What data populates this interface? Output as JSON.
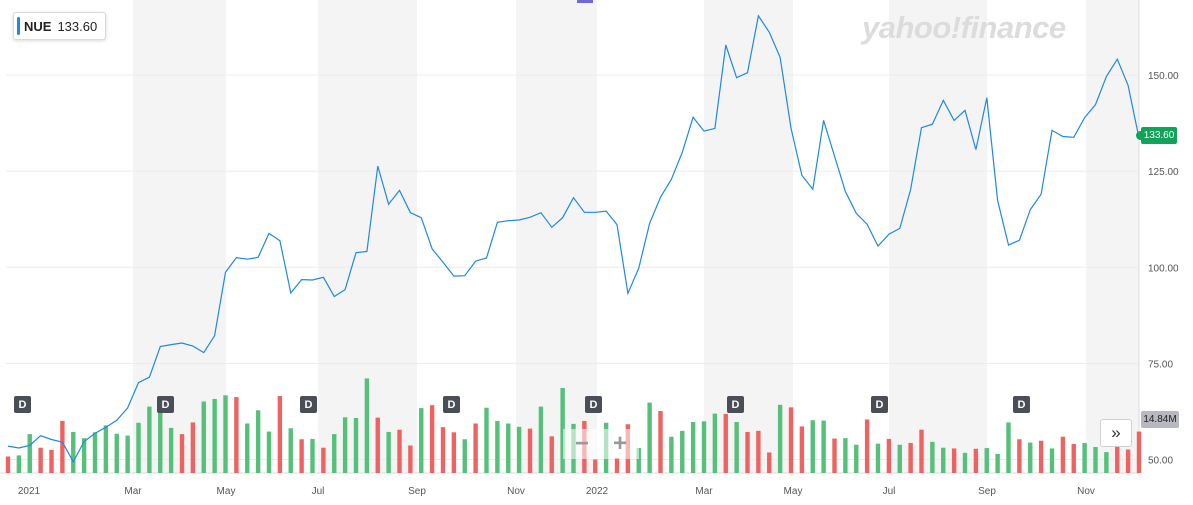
{
  "ticker": {
    "symbol": "NUE",
    "last": "133.60"
  },
  "watermark": "yahoo!finance",
  "last_price_tag": "133.60",
  "volume_tag": "14.84M",
  "controls": {
    "zoom_out": "−",
    "zoom_in": "+",
    "expand": "»"
  },
  "dividend_marker_label": "D",
  "colors": {
    "price_line": "#1e88e5",
    "vol_up": "#54c07a",
    "vol_down": "#ef6262",
    "band": "#f4f4f4",
    "tag": "#0fa45a"
  },
  "chart_data": {
    "type": "line",
    "x_tick_labels": [
      "2021",
      "Mar",
      "May",
      "Jul",
      "Sep",
      "Nov",
      "2022",
      "Mar",
      "May",
      "Jul",
      "Sep",
      "Nov"
    ],
    "y_tick_labels": [
      "150.00",
      "125.00",
      "100.00",
      "75.00",
      "50.00"
    ],
    "ylim": [
      46.5,
      169.5
    ],
    "grid": true,
    "series": [
      {
        "values": [
          53.5,
          53,
          53.7,
          56.2,
          55.2,
          54.5,
          49.4,
          54.7,
          56.8,
          58.4,
          60.2,
          63.4,
          70,
          71.4,
          79.4,
          79.9,
          80.3,
          79.5,
          77.8,
          82.2,
          98.7,
          102.5,
          102.1,
          102.6,
          108.8,
          106.9,
          93.3,
          96.8,
          96.7,
          97.4,
          92.4,
          94.2,
          103.8,
          104.1,
          126.3,
          116.4,
          120,
          114.2,
          112.9,
          104.8,
          101.3,
          97.7,
          97.8,
          101.6,
          102.4,
          111.7,
          112.1,
          112.3,
          113,
          114.2,
          110.4,
          112.9,
          118.1,
          114.3,
          114.3,
          114.6,
          111.1,
          93.2,
          99.8,
          111.4,
          118.2,
          122.9,
          129.9,
          139,
          135.4,
          136.1,
          157.8,
          149.3,
          150.6,
          165.4,
          161.1,
          154.6,
          136.2,
          123.9,
          120.3,
          138.2,
          128.9,
          119.7,
          114,
          111.2,
          105.5,
          108.6,
          110.1,
          120.2,
          136.3,
          137.2,
          143.4,
          138.2,
          140.8,
          130.6,
          144.1,
          117.4,
          105.8,
          107,
          115,
          119,
          135.6,
          134,
          133.8,
          138.9,
          142.3,
          149.6,
          154.1,
          147.3,
          133.6
        ]
      }
    ],
    "volume_bars": {
      "y_range": [
        0,
        30
      ],
      "values": [
        4.5,
        4.8,
        10.6,
        6.9,
        6.3,
        14.2,
        11.2,
        9.5,
        11.1,
        13,
        10.7,
        10.2,
        13.7,
        18.1,
        18.5,
        12.3,
        10.6,
        13.8,
        19.5,
        20.2,
        21.2,
        20.7,
        13.5,
        17.1,
        11.3,
        21,
        12.2,
        9.2,
        9.3,
        6.9,
        10.6,
        15.2,
        15,
        25.8,
        15.1,
        11.2,
        11.8,
        7.5,
        17.7,
        18.5,
        12.5,
        11.1,
        9.2,
        13.5,
        17.8,
        14.2,
        13.5,
        12.6,
        12.1,
        18.1,
        10,
        23.2,
        13.4,
        14.2,
        3.7,
        13.7,
        4.1,
        13.3,
        6.8,
        19.2,
        16.9,
        9.9,
        11.5,
        13.9,
        14.1,
        16.2,
        16.1,
        13.9,
        11.2,
        11.5,
        5.6,
        18.6,
        17.9,
        12.7,
        14.4,
        14.3,
        9.4,
        9.5,
        7.7,
        14.6,
        8,
        9.3,
        7.7,
        8.2,
        11.8,
        8.5,
        6.9,
        6.7,
        5.5,
        6.6,
        6.8,
        5.2,
        13.8,
        9.2,
        8.3,
        8.8,
        6.7,
        9.9,
        7.9,
        8.2,
        7.1,
        5.7,
        7.9,
        6.4,
        11.3
      ],
      "up": [
        false,
        true,
        true,
        false,
        false,
        false,
        true,
        true,
        true,
        true,
        true,
        true,
        true,
        true,
        true,
        true,
        false,
        false,
        true,
        true,
        true,
        false,
        true,
        true,
        true,
        false,
        true,
        false,
        true,
        false,
        true,
        true,
        true,
        true,
        false,
        true,
        false,
        false,
        true,
        false,
        false,
        false,
        true,
        false,
        true,
        true,
        true,
        true,
        false,
        true,
        false,
        true,
        true,
        false,
        false,
        true,
        false,
        false,
        true,
        true,
        false,
        true,
        true,
        true,
        true,
        true,
        false,
        true,
        false,
        false,
        false,
        true,
        false,
        false,
        true,
        true,
        false,
        true,
        true,
        false,
        true,
        false,
        true,
        false,
        false,
        true,
        true,
        false,
        true,
        false,
        true,
        true,
        true,
        false,
        true,
        false,
        true,
        false,
        false,
        true,
        true,
        true,
        false,
        false,
        false
      ]
    },
    "dividend_markers": [
      "D",
      "D",
      "D",
      "D",
      "D",
      "D",
      "D",
      "D",
      "D"
    ]
  }
}
